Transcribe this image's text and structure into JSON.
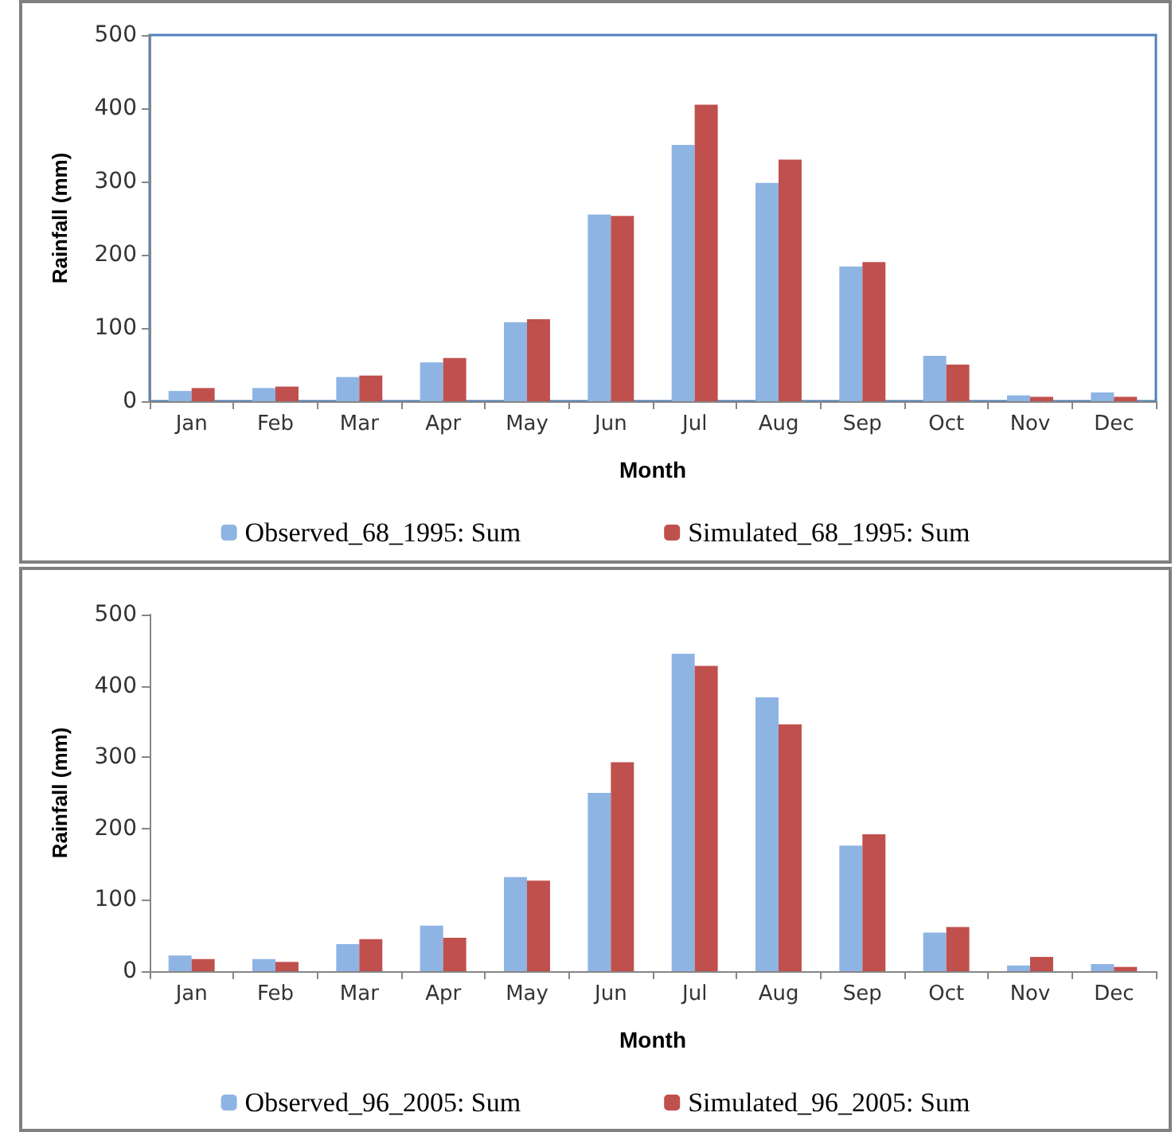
{
  "chart_data": [
    {
      "type": "bar",
      "xlabel": "Month",
      "ylabel": "Rainfall (mm)",
      "categories": [
        "Jan",
        "Feb",
        "Mar",
        "Apr",
        "May",
        "Jun",
        "Jul",
        "Aug",
        "Sep",
        "Oct",
        "Nov",
        "Dec"
      ],
      "series": [
        {
          "name": "Observed_68_1995: Sum",
          "color": "#8eb4e3",
          "values": [
            14,
            18,
            33,
            53,
            108,
            255,
            350,
            298,
            184,
            62,
            8,
            12
          ]
        },
        {
          "name": "Simulated_68_1995: Sum",
          "color": "#c0504d",
          "values": [
            18,
            20,
            35,
            59,
            112,
            253,
            405,
            330,
            190,
            50,
            6,
            6
          ]
        }
      ],
      "ylim": [
        0,
        500
      ],
      "yticks": [
        0,
        100,
        200,
        300,
        400,
        500
      ],
      "grid": false,
      "legend": "bottom"
    },
    {
      "type": "bar",
      "xlabel": "Month",
      "ylabel": "Rainfall (mm)",
      "categories": [
        "Jan",
        "Feb",
        "Mar",
        "Apr",
        "May",
        "Jun",
        "Jul",
        "Aug",
        "Sep",
        "Oct",
        "Nov",
        "Dec"
      ],
      "series": [
        {
          "name": "Observed_96_2005: Sum",
          "color": "#8eb4e3",
          "values": [
            22,
            17,
            38,
            64,
            132,
            250,
            445,
            384,
            176,
            54,
            8,
            10
          ]
        },
        {
          "name": "Simulated_96_2005: Sum",
          "color": "#c0504d",
          "values": [
            17,
            13,
            45,
            47,
            127,
            293,
            428,
            346,
            192,
            62,
            20,
            6
          ]
        }
      ],
      "ylim": [
        0,
        500
      ],
      "yticks": [
        0,
        100,
        200,
        300,
        400,
        500
      ],
      "grid": false,
      "legend": "bottom"
    }
  ]
}
